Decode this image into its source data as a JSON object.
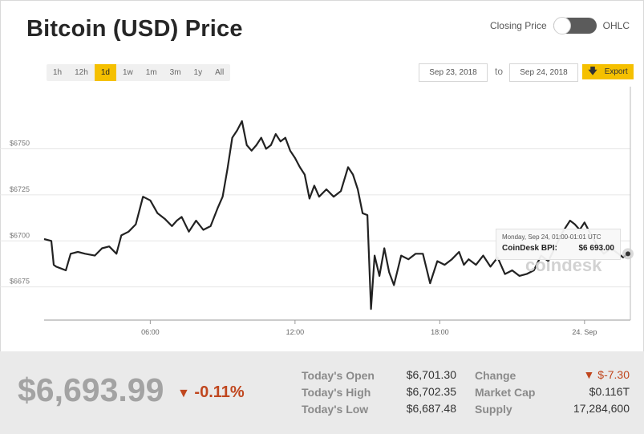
{
  "header": {
    "title": "Bitcoin (USD) Price",
    "toggle_left_label": "Closing Price",
    "toggle_right_label": "OHLC"
  },
  "ranges": [
    {
      "label": "1h"
    },
    {
      "label": "12h"
    },
    {
      "label": "1d",
      "active": true
    },
    {
      "label": "1w"
    },
    {
      "label": "1m"
    },
    {
      "label": "3m"
    },
    {
      "label": "1y"
    },
    {
      "label": "All"
    }
  ],
  "date_range": {
    "from": "Sep 23, 2018",
    "to_label": "to",
    "to": "Sep 24, 2018"
  },
  "export_label": "Export",
  "tooltip": {
    "time": "Monday, Sep 24, 01:00-01:01 UTC",
    "label": "CoinDesk BPI:",
    "value": "$6 693.00"
  },
  "watermark": "coindesk",
  "summary": {
    "price": "$6,693.99",
    "change_pct": "-0.11%",
    "down_arrow": "▼"
  },
  "stats": {
    "open_label": "Today's Open",
    "open": "$6,701.30",
    "high_label": "Today's High",
    "high": "$6,702.35",
    "low_label": "Today's Low",
    "low": "$6,687.48",
    "change_label": "Change",
    "change": "▼ $-7.30",
    "mcap_label": "Market Cap",
    "mcap": "$0.116T",
    "supply_label": "Supply",
    "supply": "17,284,600"
  },
  "colors": {
    "accent": "#f5c000",
    "line": "#222222",
    "negative": "#c0471f"
  },
  "chart_data": {
    "type": "line",
    "title": "",
    "xlabel": "",
    "ylabel": "",
    "ylim": [
      6657,
      6782
    ],
    "y_ticks": [
      {
        "value": 6675,
        "label": "$6675"
      },
      {
        "value": 6700,
        "label": "$6700"
      },
      {
        "value": 6725,
        "label": "$6725"
      },
      {
        "value": 6750,
        "label": "$6750"
      }
    ],
    "xlim": [
      1.6,
      25.9
    ],
    "x_ticks": [
      {
        "value": 6,
        "label": "06:00"
      },
      {
        "value": 12,
        "label": "12:00"
      },
      {
        "value": 18,
        "label": "18:00"
      },
      {
        "value": 24,
        "label": "24. Sep"
      }
    ],
    "grid": true,
    "series": [
      {
        "x": [
          1.6,
          1.9,
          2.0,
          2.1,
          2.3,
          2.5,
          2.7,
          3.0,
          3.3,
          3.7,
          4.0,
          4.3,
          4.6,
          4.8,
          5.1,
          5.4,
          5.7,
          6.0,
          6.3,
          6.6,
          6.9,
          7.1,
          7.3,
          7.6,
          7.9,
          8.2,
          8.5,
          8.8,
          9.0,
          9.2,
          9.4,
          9.6,
          9.8,
          10.0,
          10.2,
          10.4,
          10.6,
          10.8,
          11.0,
          11.2,
          11.4,
          11.6,
          11.8,
          12.0,
          12.2,
          12.4,
          12.6,
          12.8,
          13.0,
          13.3,
          13.6,
          13.9,
          14.2,
          14.4,
          14.6,
          14.8,
          15.0,
          15.15,
          15.3,
          15.5,
          15.7,
          15.9,
          16.1,
          16.4,
          16.7,
          17.0,
          17.3,
          17.6,
          17.9,
          18.2,
          18.5,
          18.8,
          19.0,
          19.2,
          19.5,
          19.8,
          20.1,
          20.4,
          20.7,
          21.0,
          21.3,
          21.6,
          21.9,
          22.2,
          22.5,
          22.8,
          23.1,
          23.4,
          23.6,
          23.8,
          24.0,
          24.2,
          24.5,
          24.8,
          25.1,
          25.4,
          25.6,
          25.8
        ],
        "y": [
          6701,
          6700,
          6687,
          6686,
          6685,
          6684,
          6693,
          6694,
          6693,
          6692,
          6696,
          6697,
          6693,
          6703,
          6705,
          6709,
          6724,
          6722,
          6715,
          6712,
          6708,
          6711,
          6713,
          6705,
          6711,
          6706,
          6708,
          6718,
          6724,
          6739,
          6756,
          6760,
          6765,
          6752,
          6749,
          6752,
          6756,
          6750,
          6752,
          6758,
          6754,
          6756,
          6749,
          6745,
          6740,
          6736,
          6723,
          6730,
          6724,
          6728,
          6724,
          6727,
          6740,
          6736,
          6728,
          6715,
          6714,
          6663,
          6692,
          6681,
          6696,
          6683,
          6676,
          6692,
          6690,
          6693,
          6693,
          6677,
          6689,
          6687,
          6690,
          6694,
          6687,
          6690,
          6687,
          6692,
          6686,
          6691,
          6682,
          6684,
          6681,
          6682,
          6684,
          6692,
          6689,
          6697,
          6705,
          6711,
          6709,
          6706,
          6710,
          6705,
          6698,
          6693,
          6696,
          6693,
          6691,
          6693
        ]
      }
    ]
  }
}
